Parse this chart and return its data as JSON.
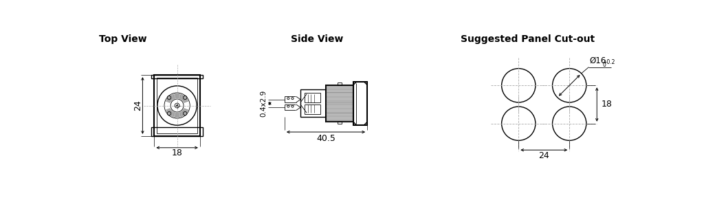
{
  "title_top_view": "Top View",
  "title_side_view": "Side View",
  "title_panel": "Suggested Panel Cut-out",
  "dim_top_height": "24",
  "dim_top_width": "18",
  "dim_side_length": "40.5",
  "dim_side_tab": "0.4x2.9",
  "dim_panel_spacing_h": "24",
  "dim_panel_spacing_v": "18",
  "dim_panel_diameter": "Ø16",
  "bg_color": "#ffffff",
  "line_color": "#000000",
  "dim_color": "#000000",
  "dashed_color": "#aaaaaa",
  "gray_fill": "#cccccc"
}
